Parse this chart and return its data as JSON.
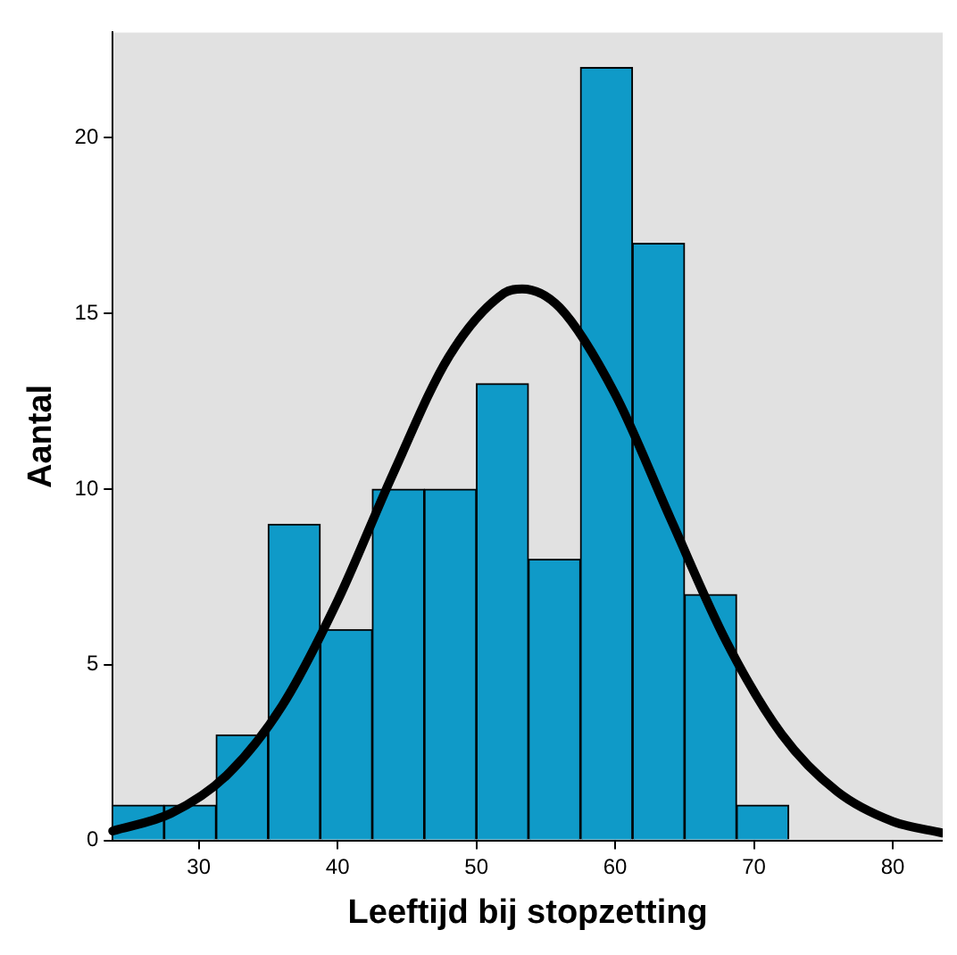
{
  "chart_data": {
    "type": "histogram",
    "xlabel": "Leeftijd bij stopzetting",
    "ylabel": "Aantal",
    "bins": [
      23.75,
      27.5,
      31.25,
      35,
      38.75,
      42.5,
      46.25,
      50,
      53.75,
      57.5,
      61.25,
      65,
      68.75,
      72.5
    ],
    "values": [
      1,
      1,
      3,
      9,
      6,
      10,
      10,
      13,
      8,
      22,
      17,
      7,
      1
    ],
    "color": "#0f9ac8",
    "series": [
      {
        "type": "line",
        "color": "#000000",
        "x": [
          23.8,
          28,
          32,
          36,
          40,
          44,
          48,
          52,
          53.3,
          56,
          60,
          64,
          68,
          72,
          76,
          80,
          83.6
        ],
        "values": [
          0.27,
          0.77,
          1.85,
          3.83,
          6.82,
          10.44,
          13.76,
          15.58,
          15.7,
          15.17,
          12.7,
          9.15,
          5.67,
          3.02,
          1.39,
          0.54,
          0.21
        ]
      }
    ],
    "xlim": [
      23.8,
      83.6
    ],
    "xticks": [
      30,
      40,
      50,
      60,
      70,
      80
    ],
    "ylim": [
      0,
      23
    ],
    "yticks": [
      0,
      5,
      10,
      15,
      20
    ],
    "grid": false,
    "legend": false
  }
}
